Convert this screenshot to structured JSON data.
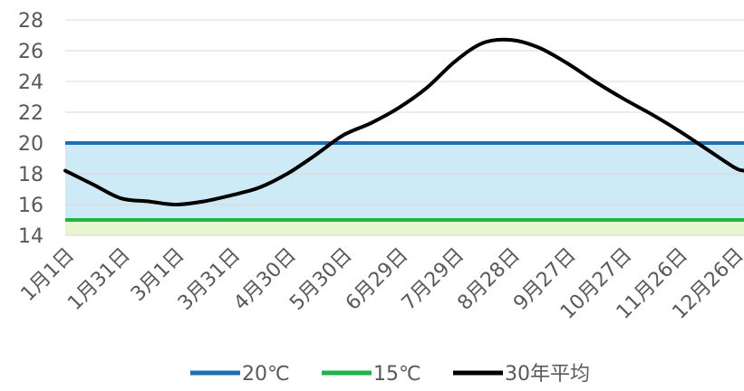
{
  "chart_data": {
    "type": "line",
    "title": "",
    "xlabel": "",
    "ylabel": "",
    "ylim": [
      14,
      28
    ],
    "yticks": [
      14,
      16,
      18,
      20,
      22,
      24,
      26,
      28
    ],
    "x_tick_labels": [
      "1月1日",
      "1月31日",
      "3月1日",
      "3月31日",
      "4月30日",
      "5月30日",
      "6月29日",
      "7月29日",
      "8月28日",
      "9月27日",
      "10月27日",
      "11月26日",
      "12月26日"
    ],
    "grid": true,
    "legend_position": "bottom",
    "bands": [
      {
        "from": 15,
        "to": 20,
        "color": "#cfeaf7"
      },
      {
        "from": 14,
        "to": 15,
        "color": "#e8f6cf"
      }
    ],
    "series": [
      {
        "name": "20℃",
        "type": "reference",
        "values": [
          20,
          20
        ],
        "color": "#1a6fb5"
      },
      {
        "name": "15℃",
        "type": "reference",
        "values": [
          15,
          15
        ],
        "color": "#21b24b"
      },
      {
        "name": "30年平均",
        "type": "line",
        "color": "#000000",
        "x": [
          "1月1日",
          "1月16日",
          "1月31日",
          "2月15日",
          "3月1日",
          "3月16日",
          "3月31日",
          "4月15日",
          "4月30日",
          "5月15日",
          "5月30日",
          "6月14日",
          "6月29日",
          "7月14日",
          "7月29日",
          "8月13日",
          "8月28日",
          "9月12日",
          "9月27日",
          "10月12日",
          "10月27日",
          "11月11日",
          "11月26日",
          "12月11日",
          "12月26日",
          "12月31日"
        ],
        "values": [
          18.2,
          17.3,
          16.4,
          16.2,
          16.0,
          16.2,
          16.6,
          17.1,
          18.0,
          19.2,
          20.5,
          21.3,
          22.3,
          23.6,
          25.3,
          26.5,
          26.7,
          26.2,
          25.2,
          24.0,
          22.9,
          21.9,
          20.8,
          19.6,
          18.4,
          18.2
        ]
      }
    ]
  }
}
